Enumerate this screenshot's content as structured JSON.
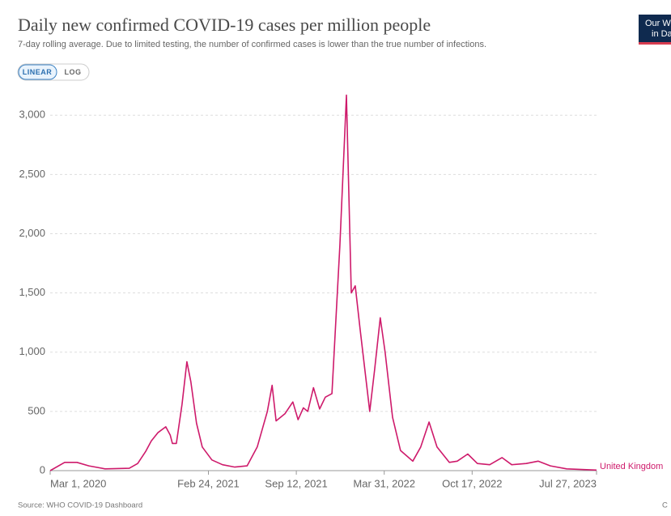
{
  "chart_data": {
    "type": "line",
    "title": "Daily new confirmed COVID-19 cases per million people",
    "subtitle": "7-day rolling average. Due to limited testing, the number of confirmed cases is lower than the true number of infections.",
    "scale_buttons": [
      "LINEAR",
      "LOG"
    ],
    "logo": [
      "Our W",
      "in Da"
    ],
    "source": "Source: WHO COVID-19 Dashboard",
    "license": "C",
    "x": [
      "2020-03-01",
      "2020-04-03",
      "2020-05-01",
      "2020-05-28",
      "2020-07-04",
      "2020-08-28",
      "2020-09-16",
      "2020-10-04",
      "2020-10-17",
      "2020-11-01",
      "2020-11-19",
      "2020-11-29",
      "2020-12-04",
      "2020-12-13",
      "2020-12-26",
      "2021-01-06",
      "2021-01-15",
      "2021-01-28",
      "2021-02-10",
      "2021-03-04",
      "2021-03-28",
      "2021-04-25",
      "2021-05-23",
      "2021-06-15",
      "2021-07-08",
      "2021-07-19",
      "2021-07-28",
      "2021-08-17",
      "2021-09-04",
      "2021-09-16",
      "2021-09-28",
      "2021-10-08",
      "2021-10-21",
      "2021-11-04",
      "2021-11-17",
      "2021-12-02",
      "2021-12-20",
      "2022-01-04",
      "2022-01-15",
      "2022-01-24",
      "2022-02-04",
      "2022-02-26",
      "2022-03-09",
      "2022-03-22",
      "2022-04-02",
      "2022-04-19",
      "2022-05-07",
      "2022-06-04",
      "2022-06-22",
      "2022-07-11",
      "2022-07-29",
      "2022-08-26",
      "2022-09-13",
      "2022-10-07",
      "2022-10-29",
      "2022-11-26",
      "2022-12-24",
      "2023-01-15",
      "2023-02-17",
      "2023-03-16",
      "2023-04-13",
      "2023-05-20",
      "2023-07-27"
    ],
    "series": [
      {
        "name": "United Kingdom",
        "color": "#ce1a6b",
        "values": [
          0,
          70,
          70,
          40,
          15,
          20,
          60,
          160,
          250,
          320,
          370,
          300,
          230,
          230,
          560,
          920,
          750,
          400,
          200,
          90,
          50,
          30,
          40,
          200,
          500,
          720,
          420,
          480,
          580,
          430,
          530,
          500,
          700,
          520,
          620,
          650,
          1900,
          3170,
          1500,
          1560,
          1200,
          500,
          850,
          1290,
          1000,
          450,
          170,
          80,
          200,
          410,
          200,
          70,
          80,
          140,
          60,
          50,
          110,
          50,
          60,
          80,
          40,
          15,
          5
        ]
      }
    ],
    "xlim": [
      "2020-03-01",
      "2023-07-27"
    ],
    "xticks": [
      {
        "value": "2020-03-01",
        "label": "Mar 1, 2020"
      },
      {
        "value": "2021-02-24",
        "label": "Feb 24, 2021"
      },
      {
        "value": "2021-09-12",
        "label": "Sep 12, 2021"
      },
      {
        "value": "2022-03-31",
        "label": "Mar 31, 2022"
      },
      {
        "value": "2022-10-17",
        "label": "Oct 17, 2022"
      },
      {
        "value": "2023-07-27",
        "label": "Jul 27, 2023"
      }
    ],
    "ylim": [
      0,
      3200
    ],
    "yticks": [
      0,
      500,
      {
        "value": 1000,
        "label": "1,000"
      },
      {
        "value": 1500,
        "label": "1,500"
      },
      {
        "value": 2000,
        "label": "2,000"
      },
      {
        "value": 2500,
        "label": "2,500"
      },
      {
        "value": 3000,
        "label": "3,000"
      }
    ],
    "grid": true
  }
}
